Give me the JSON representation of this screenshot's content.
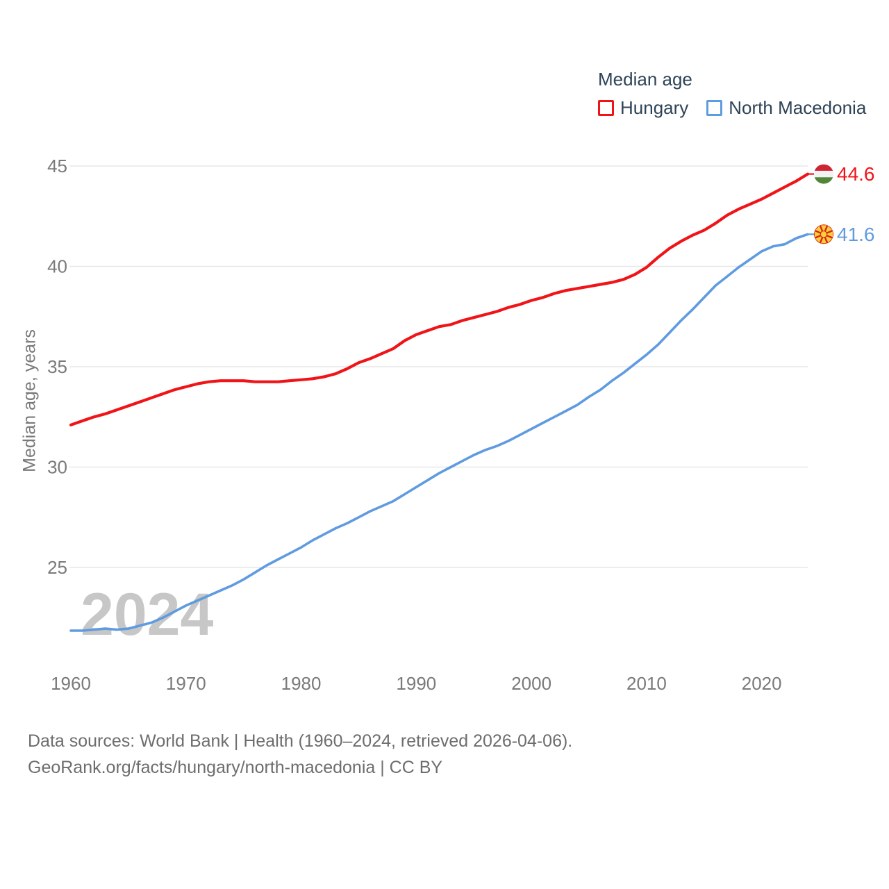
{
  "legend": {
    "title": "Median age"
  },
  "watermark": "2024",
  "footer": {
    "line1": "Data sources: World Bank | Health (1960–2024, retrieved 2026-04-06).",
    "line2": "GeoRank.org/facts/hungary/north-macedonia | CC BY"
  },
  "chart_data": {
    "type": "line",
    "title": "Median age",
    "xlabel": "",
    "ylabel": "Median age, years",
    "x_range": [
      1960,
      2024
    ],
    "ylim": [
      21,
      46
    ],
    "yticks": [
      45,
      40,
      35,
      30,
      25
    ],
    "xticks": [
      1960,
      1970,
      1980,
      1990,
      2000,
      2010,
      2020
    ],
    "grid": "horizontal",
    "legend_position": "top-right",
    "x": [
      1960,
      1961,
      1962,
      1963,
      1964,
      1965,
      1966,
      1967,
      1968,
      1969,
      1970,
      1971,
      1972,
      1973,
      1974,
      1975,
      1976,
      1977,
      1978,
      1979,
      1980,
      1981,
      1982,
      1983,
      1984,
      1985,
      1986,
      1987,
      1988,
      1989,
      1990,
      1991,
      1992,
      1993,
      1994,
      1995,
      1996,
      1997,
      1998,
      1999,
      2000,
      2001,
      2002,
      2003,
      2004,
      2005,
      2006,
      2007,
      2008,
      2009,
      2010,
      2011,
      2012,
      2013,
      2014,
      2015,
      2016,
      2017,
      2018,
      2019,
      2020,
      2021,
      2022,
      2023,
      2024
    ],
    "series": [
      {
        "name": "Hungary",
        "color": "#f01418",
        "flag": "hungary",
        "end_label": "44.6",
        "values": [
          32.1,
          32.3,
          32.5,
          32.65,
          32.85,
          33.05,
          33.25,
          33.45,
          33.65,
          33.85,
          34.0,
          34.15,
          34.25,
          34.3,
          34.3,
          34.3,
          34.25,
          34.25,
          34.25,
          34.3,
          34.35,
          34.4,
          34.5,
          34.65,
          34.9,
          35.2,
          35.4,
          35.65,
          35.9,
          36.3,
          36.6,
          36.8,
          37.0,
          37.1,
          37.3,
          37.45,
          37.6,
          37.75,
          37.95,
          38.1,
          38.3,
          38.45,
          38.65,
          38.8,
          38.9,
          39.0,
          39.1,
          39.2,
          39.35,
          39.6,
          39.95,
          40.45,
          40.9,
          41.25,
          41.55,
          41.8,
          42.15,
          42.55,
          42.85,
          43.1,
          43.35,
          43.65,
          43.95,
          44.25,
          44.6
        ]
      },
      {
        "name": "North Macedonia",
        "color": "#5f9be0",
        "flag": "north-macedonia",
        "end_label": "41.6",
        "values": [
          21.85,
          21.85,
          21.9,
          21.95,
          21.9,
          21.95,
          22.1,
          22.25,
          22.5,
          22.8,
          23.1,
          23.35,
          23.6,
          23.85,
          24.1,
          24.4,
          24.75,
          25.1,
          25.4,
          25.7,
          26.0,
          26.35,
          26.65,
          26.95,
          27.2,
          27.5,
          27.8,
          28.05,
          28.3,
          28.65,
          29.0,
          29.35,
          29.7,
          30.0,
          30.3,
          30.6,
          30.85,
          31.05,
          31.3,
          31.6,
          31.9,
          32.2,
          32.5,
          32.8,
          33.1,
          33.5,
          33.85,
          34.3,
          34.7,
          35.15,
          35.6,
          36.1,
          36.7,
          37.3,
          37.85,
          38.45,
          39.05,
          39.5,
          39.95,
          40.35,
          40.75,
          41.0,
          41.1,
          41.4,
          41.6
        ]
      }
    ]
  },
  "colors": {
    "grid": "#e7e7e7",
    "axis_text": "#7a7a7a",
    "legend_text": "#2e4356",
    "watermark": "#c7c7c7",
    "footer_text": "#6d6d6d",
    "hungary_flag": {
      "red": "#cf2433",
      "white": "#f2f2f2",
      "green": "#518638"
    },
    "macedonia_flag": {
      "red": "#d62612",
      "yellow": "#fdcf3e"
    }
  }
}
